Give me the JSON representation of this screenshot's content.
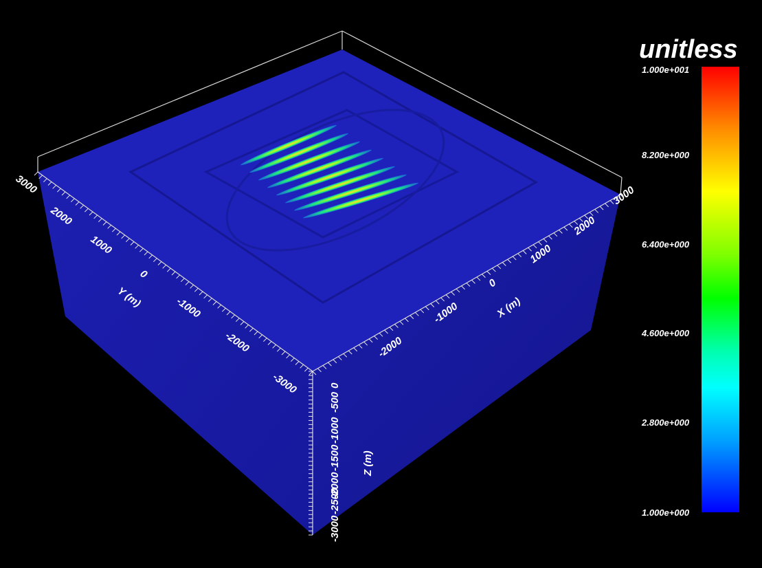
{
  "colorbar": {
    "title": "unitless",
    "ticks": [
      "1.000e+001",
      "8.200e+000",
      "6.400e+000",
      "4.600e+000",
      "2.800e+000",
      "1.000e+000"
    ],
    "min": 1.0,
    "max": 10.0,
    "colormap": [
      "#0000ff",
      "#00a0ff",
      "#00ffff",
      "#00ffb0",
      "#00ff00",
      "#80ff00",
      "#ffff00",
      "#ff8c00",
      "#ff0000"
    ]
  },
  "axes": {
    "x": {
      "label": "X (m)",
      "ticks": [
        "-2000",
        "-1000",
        "0",
        "1000",
        "2000",
        "3000"
      ]
    },
    "y": {
      "label": "Y (m)",
      "ticks": [
        "3000",
        "2000",
        "1000",
        "0",
        "-1000",
        "-2000",
        "-3000"
      ]
    },
    "z": {
      "label": "Z (m)",
      "ticks": [
        "0",
        "-500",
        "-1000",
        "-1500",
        "-2000",
        "-2500",
        "-3000"
      ]
    }
  },
  "scene": {
    "background": "#000000",
    "volume_color": "#1a1aa8",
    "top_color": "#1f22b8",
    "stripe_count": 8
  }
}
